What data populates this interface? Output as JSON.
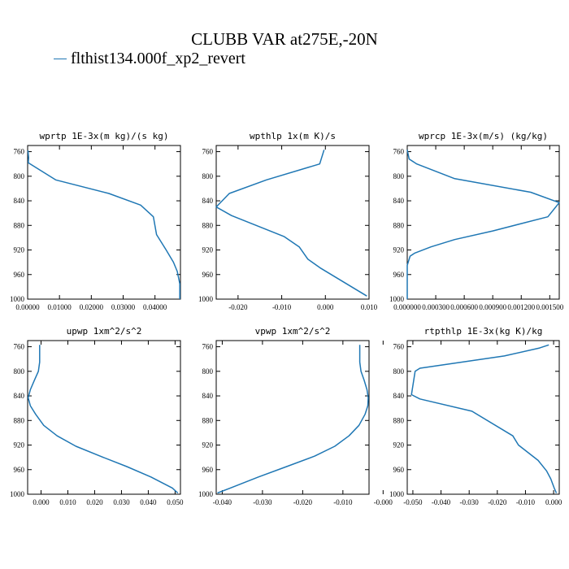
{
  "title": "CLUBB VAR at275E,-20N",
  "legend": {
    "label": "flthist134.000f_xp2_revert",
    "color": "#1f77b4"
  },
  "chart_data": [
    {
      "type": "line",
      "title": "wprtp  1E-3x(m kg)/(s kg)",
      "xlim": [
        0,
        0.048
      ],
      "ylim": [
        1000,
        750
      ],
      "xticks": [
        "0.00000",
        "0.01000",
        "0.02000",
        "0.03000",
        "0.04000"
      ],
      "xtick_values": [
        0,
        0.01,
        0.02,
        0.03,
        0.04
      ],
      "yticks": [
        760,
        800,
        840,
        880,
        920,
        960,
        1000
      ],
      "series": [
        {
          "x": [
            0.0001,
            0.0003,
            0.0002,
            0.0088,
            0.0255,
            0.0355,
            0.0395,
            0.0405,
            0.0435,
            0.0458,
            0.047,
            0.0478,
            0.0478
          ],
          "y": [
            758,
            770,
            778,
            806,
            828,
            847,
            866,
            895,
            920,
            940,
            955,
            975,
            1000
          ]
        }
      ]
    },
    {
      "type": "line",
      "title": "wpthlp  1x(m K)/s",
      "xlim": [
        -0.025,
        0.01
      ],
      "ylim": [
        1000,
        750
      ],
      "xticks": [
        "-0.020",
        "-0.010",
        "0.000",
        "0.010"
      ],
      "xtick_values": [
        -0.02,
        -0.01,
        0,
        0.01
      ],
      "yticks": [
        760,
        800,
        840,
        880,
        920,
        960,
        1000
      ],
      "series": [
        {
          "x": [
            -0.0003,
            -0.0013,
            -0.0135,
            -0.022,
            -0.025,
            -0.0215,
            -0.0095,
            -0.006,
            -0.004,
            -0.001,
            0.0095
          ],
          "y": [
            757,
            780,
            806,
            828,
            850,
            864,
            898,
            915,
            935,
            950,
            995
          ]
        }
      ]
    },
    {
      "type": "line",
      "title": "wprcp  1E-3x(m/s) (kg/kg)",
      "xlim": [
        0,
        0.0016
      ],
      "ylim": [
        1000,
        750
      ],
      "xticks": [
        "0.000000",
        "0.000300",
        "0.000600",
        "0.000900",
        "0.001200",
        "0.001500"
      ],
      "xtick_values": [
        0,
        0.0003,
        0.0006,
        0.0009,
        0.0012,
        0.0015
      ],
      "yticks": [
        760,
        800,
        840,
        880,
        920,
        960,
        1000
      ],
      "series": [
        {
          "x": [
            0,
            2e-05,
            0.0001,
            0.0005,
            0.0013,
            0.0016,
            0.00148,
            0.0009,
            0.0005,
            0.00025,
            8e-05,
            3e-05,
            0,
            0
          ],
          "y": [
            757,
            772,
            780,
            804,
            826,
            843,
            866,
            889,
            903,
            915,
            925,
            930,
            945,
            1000
          ]
        }
      ]
    },
    {
      "type": "line",
      "title": "upwp  1xm^2/s^2",
      "xlim": [
        -0.005,
        0.052
      ],
      "ylim": [
        1000,
        750
      ],
      "xticks": [
        "0.000",
        "0.010",
        "0.020",
        "0.030",
        "0.040",
        "0.050"
      ],
      "xtick_values": [
        0,
        0.01,
        0.02,
        0.03,
        0.04,
        0.05
      ],
      "yticks": [
        760,
        800,
        840,
        880,
        920,
        960,
        1000
      ],
      "series": [
        {
          "x": [
            -0.0005,
            -0.0005,
            -0.001,
            -0.0025,
            -0.004,
            -0.0048,
            -0.004,
            -0.002,
            0.001,
            0.006,
            0.013,
            0.022,
            0.032,
            0.041,
            0.049,
            0.051
          ],
          "y": [
            757,
            785,
            800,
            815,
            830,
            843,
            856,
            870,
            888,
            905,
            922,
            938,
            955,
            972,
            990,
            998
          ]
        }
      ]
    },
    {
      "type": "line",
      "title": "vpwp  1xm^2/s^2",
      "xlim": [
        -0.0415,
        -0.0035
      ],
      "ylim": [
        1000,
        750
      ],
      "xticks": [
        "-0.040",
        "-0.030",
        "-0.020",
        "-0.010",
        "-0.000"
      ],
      "xtick_values": [
        -0.04,
        -0.03,
        -0.02,
        -0.01,
        0
      ],
      "yticks": [
        760,
        800,
        840,
        880,
        920,
        960,
        1000
      ],
      "series": [
        {
          "x": [
            -0.0058,
            -0.0058,
            -0.0055,
            -0.0047,
            -0.004,
            -0.0037,
            -0.0038,
            -0.0045,
            -0.006,
            -0.0085,
            -0.012,
            -0.017,
            -0.024,
            -0.031,
            -0.038,
            -0.0412
          ],
          "y": [
            757,
            785,
            800,
            815,
            830,
            843,
            856,
            870,
            888,
            905,
            922,
            938,
            955,
            972,
            990,
            998
          ]
        }
      ]
    },
    {
      "type": "line",
      "title": "rtpthlp  1E-3x(kg K)/kg",
      "xlim": [
        -0.052,
        0.002
      ],
      "ylim": [
        1000,
        750
      ],
      "xticks": [
        "-0.050",
        "-0.040",
        "-0.030",
        "-0.020",
        "-0.010",
        "0.000"
      ],
      "xtick_values": [
        -0.05,
        -0.04,
        -0.03,
        -0.02,
        -0.01,
        0
      ],
      "yticks": [
        760,
        800,
        840,
        880,
        920,
        960,
        1000
      ],
      "series": [
        {
          "x": [
            -0.0017,
            -0.005,
            -0.0175,
            -0.0475,
            -0.0492,
            -0.0505,
            -0.0475,
            -0.029,
            -0.0145,
            -0.0125,
            -0.0055,
            -0.0025,
            -0.001,
            0.0002,
            0.001
          ],
          "y": [
            757,
            762,
            775,
            795,
            800,
            838,
            845,
            865,
            905,
            920,
            945,
            962,
            975,
            990,
            998
          ]
        }
      ]
    }
  ]
}
